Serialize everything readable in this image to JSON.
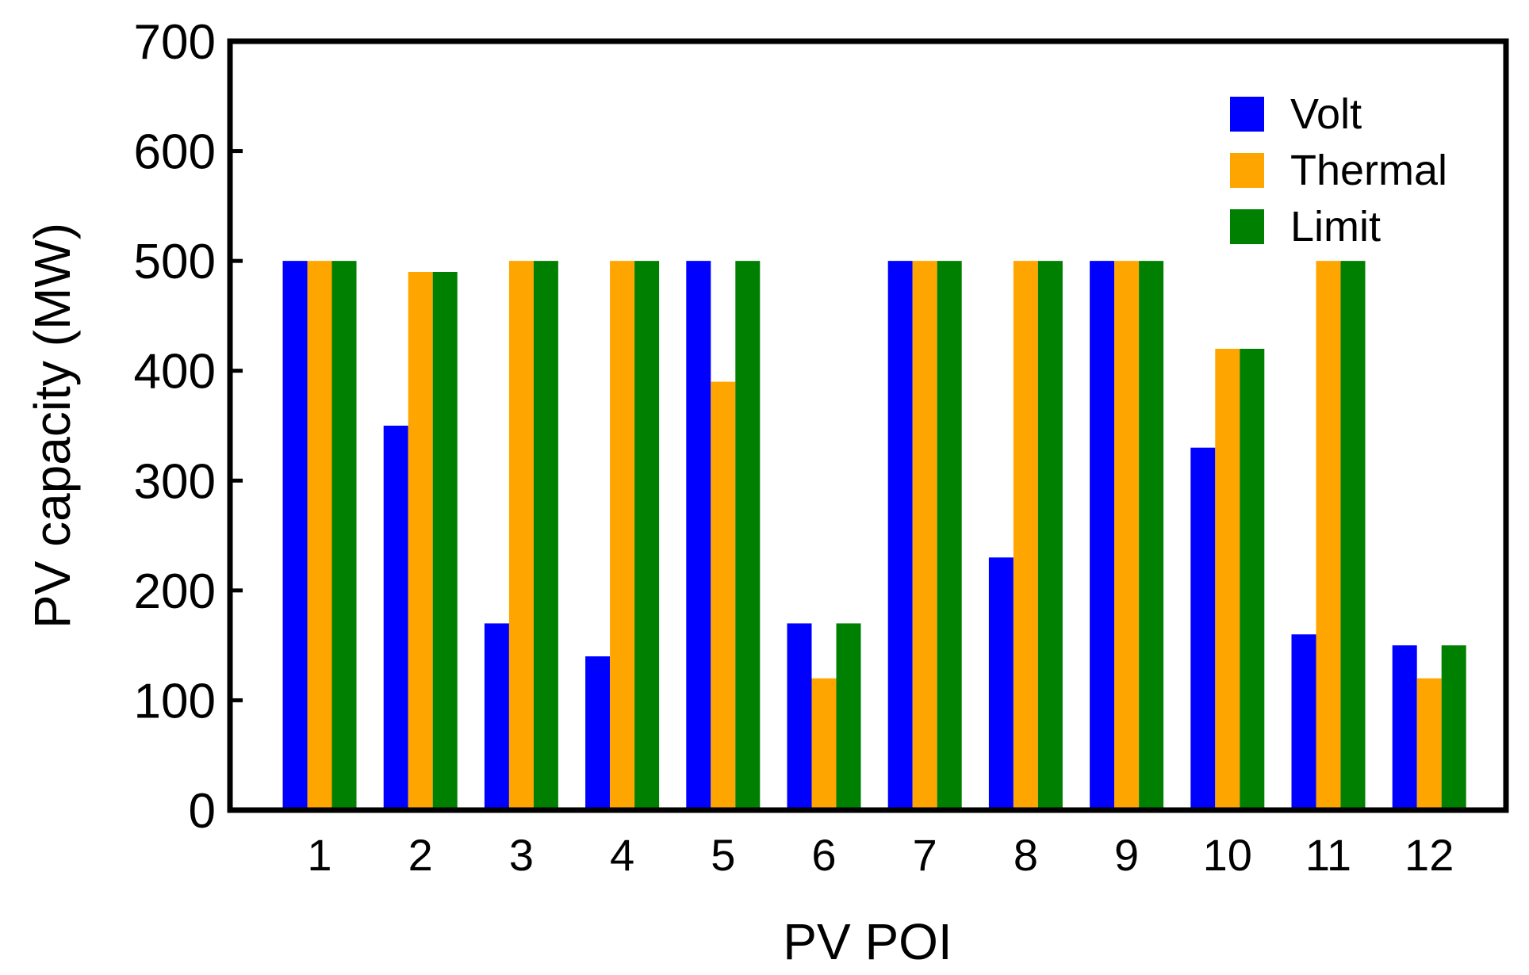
{
  "chart_data": {
    "type": "bar",
    "title": "",
    "xlabel": "PV POI",
    "ylabel": "PV capacity (MW)",
    "categories": [
      "1",
      "2",
      "3",
      "4",
      "5",
      "6",
      "7",
      "8",
      "9",
      "10",
      "11",
      "12"
    ],
    "series": [
      {
        "name": "Volt",
        "color": "#0000ff",
        "values": [
          500,
          350,
          170,
          140,
          500,
          170,
          500,
          230,
          500,
          330,
          160,
          150
        ]
      },
      {
        "name": "Thermal",
        "color": "#ffa500",
        "values": [
          500,
          490,
          500,
          500,
          390,
          120,
          500,
          500,
          500,
          420,
          500,
          120
        ]
      },
      {
        "name": "Limit",
        "color": "#008000",
        "values": [
          500,
          490,
          500,
          500,
          500,
          170,
          500,
          500,
          500,
          420,
          500,
          150
        ]
      }
    ],
    "ylim": [
      0,
      700
    ],
    "yticks": [
      0,
      100,
      200,
      300,
      400,
      500,
      600,
      700
    ],
    "grid": false,
    "legend_position": "top-right"
  }
}
